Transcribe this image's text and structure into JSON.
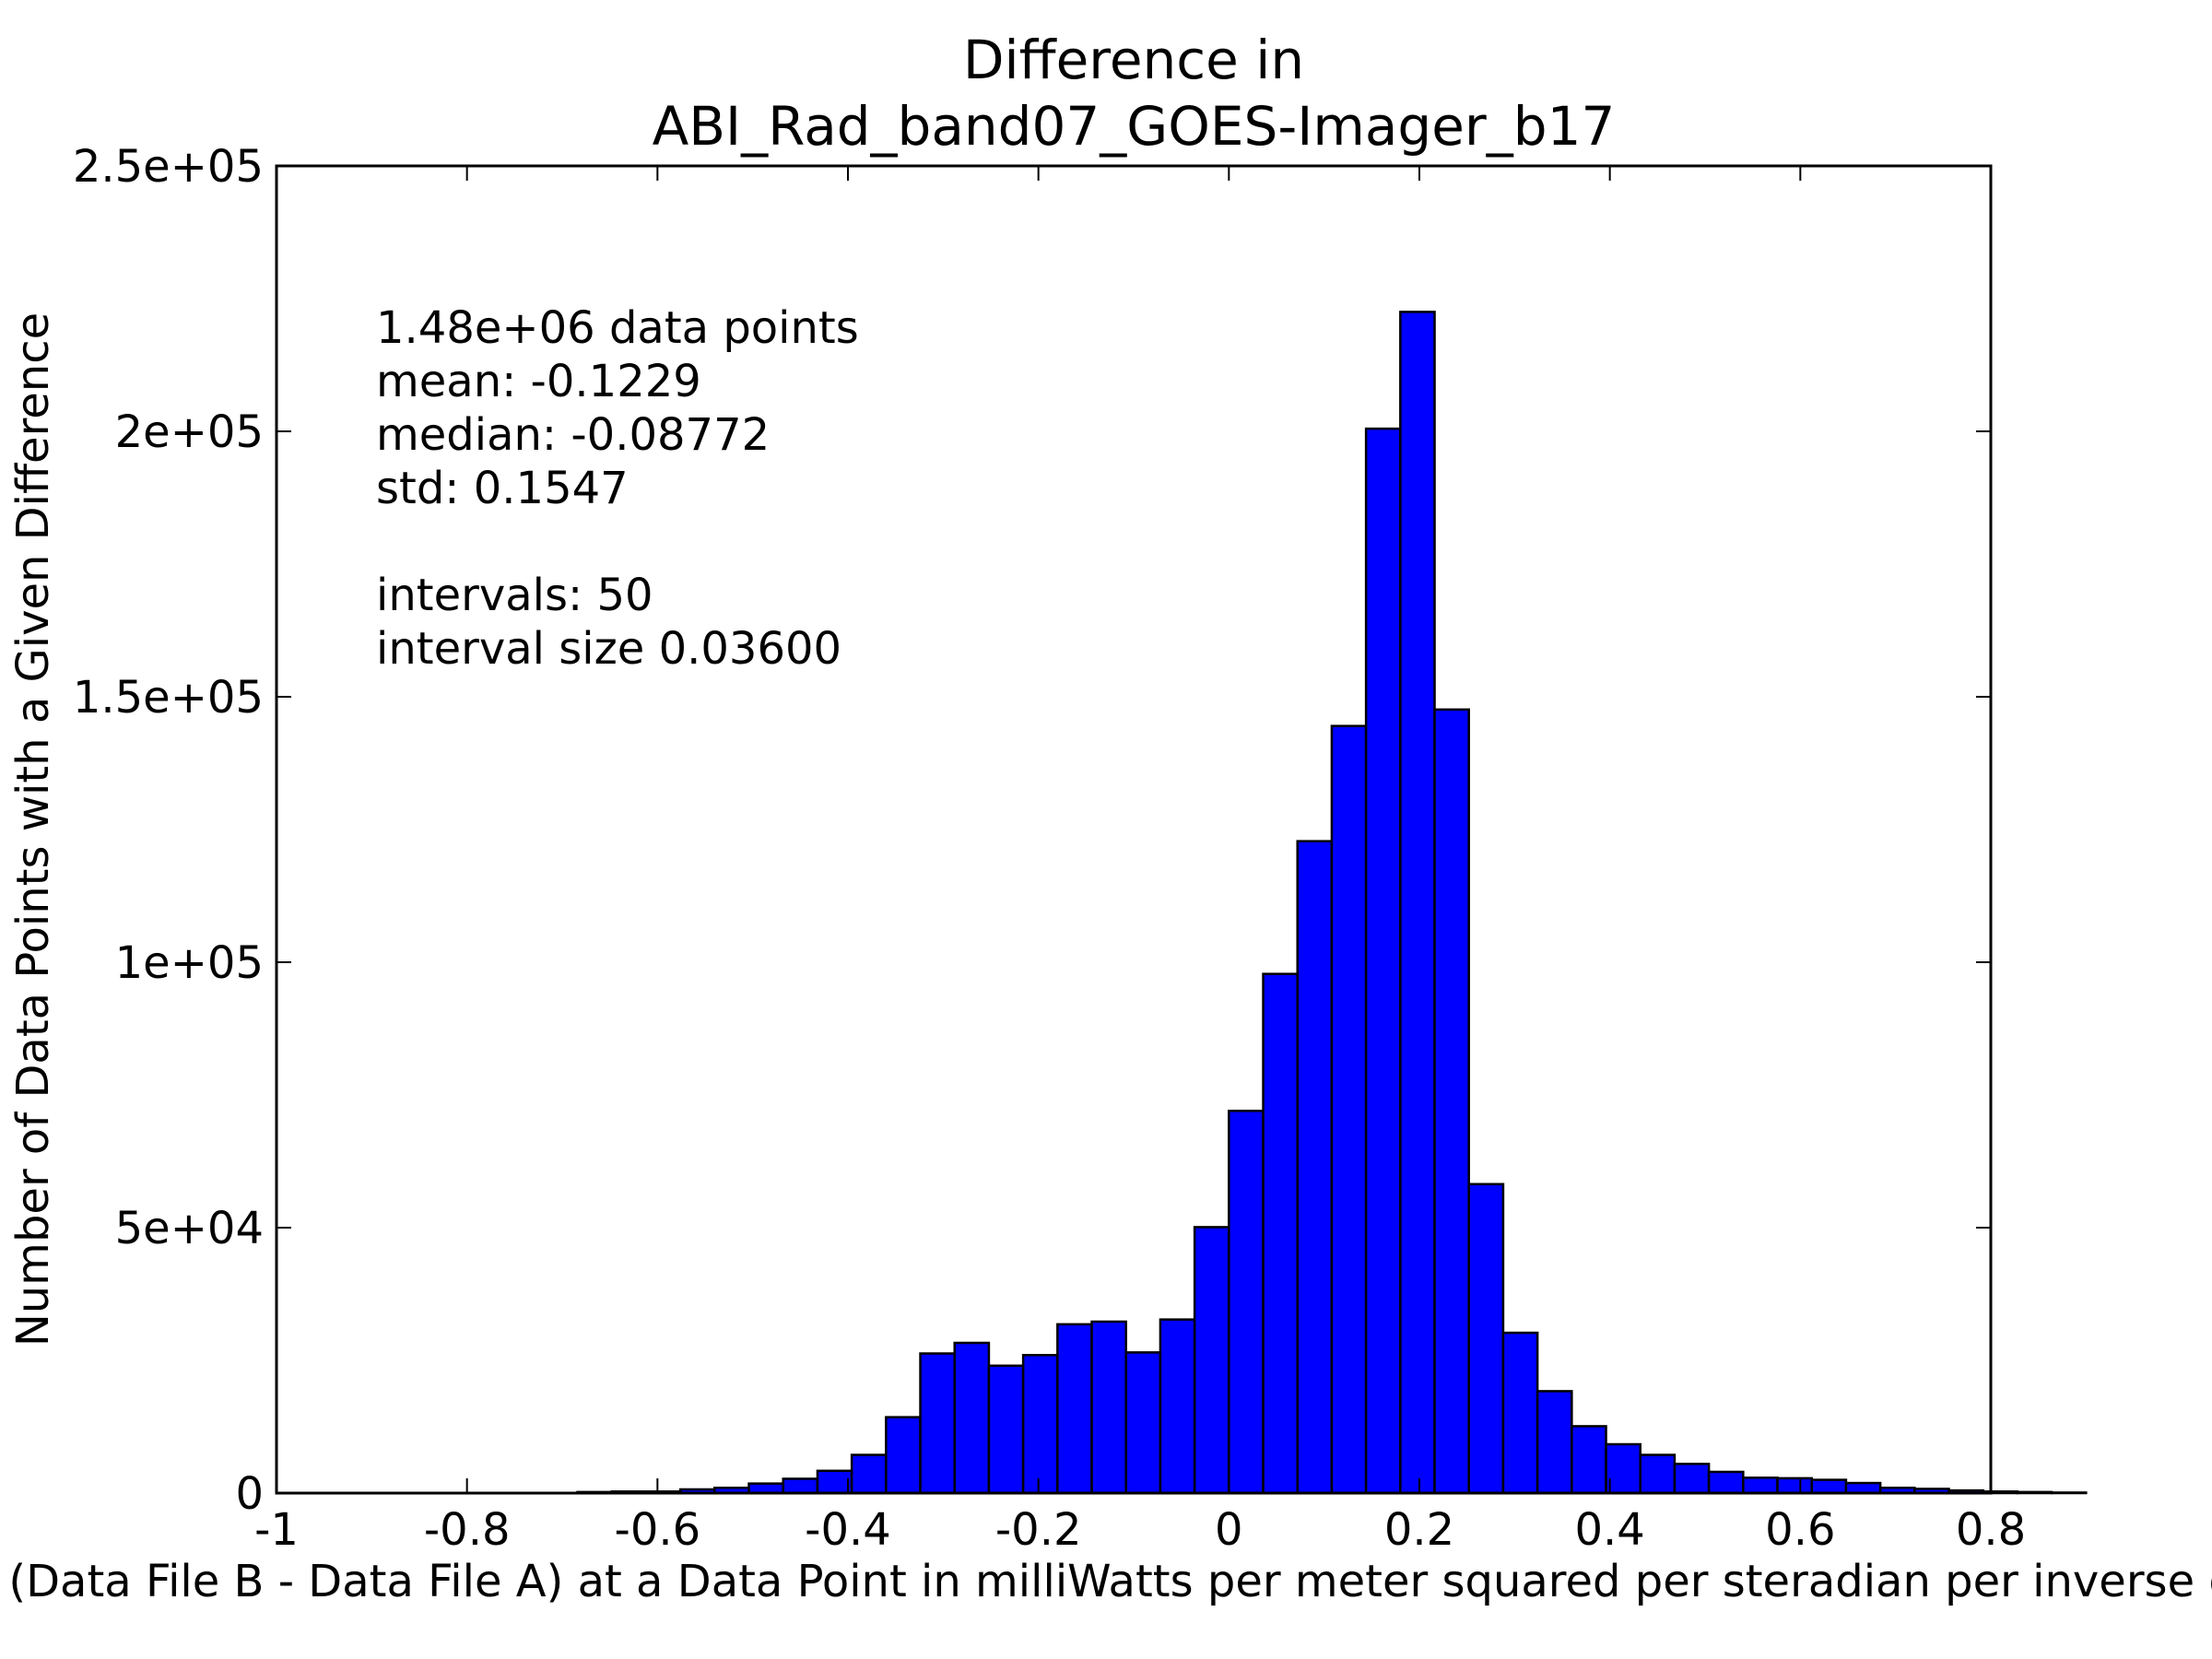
{
  "chart_data": {
    "type": "bar",
    "title_lines": [
      "Difference in",
      "ABI_Rad_band07_GOES-Imager_b17"
    ],
    "xlabel": "Value of (Data File B - Data File A) at a Data Point in milliWatts per meter squared per steradian per inverse centimeter",
    "ylabel": "Number of Data Points with a Given Difference",
    "xlim": [
      -1.0,
      0.8
    ],
    "ylim": [
      0,
      250000
    ],
    "grid": false,
    "legend": "none",
    "bar_color": "#0000ff",
    "edge_color": "#000000",
    "x_ticks": [
      {
        "value": -1.0,
        "label": "-1"
      },
      {
        "value": -0.8,
        "label": "-0.8"
      },
      {
        "value": -0.6,
        "label": "-0.6"
      },
      {
        "value": -0.4,
        "label": "-0.4"
      },
      {
        "value": -0.2,
        "label": "-0.2"
      },
      {
        "value": 0.0,
        "label": "0"
      },
      {
        "value": 0.2,
        "label": "0.2"
      },
      {
        "value": 0.4,
        "label": "0.4"
      },
      {
        "value": 0.6,
        "label": "0.6"
      },
      {
        "value": 0.8,
        "label": "0.8"
      }
    ],
    "y_ticks": [
      {
        "value": 0,
        "label": "0"
      },
      {
        "value": 50000,
        "label": "5e+04"
      },
      {
        "value": 100000,
        "label": "1e+05"
      },
      {
        "value": 150000,
        "label": "1.5e+05"
      },
      {
        "value": 200000,
        "label": "2e+05"
      },
      {
        "value": 250000,
        "label": "2.5e+05"
      }
    ],
    "bin_start": -0.9,
    "bin_width": 0.036,
    "values": [
      0,
      0,
      0,
      0,
      0,
      0,
      200,
      300,
      300,
      700,
      1000,
      1800,
      2700,
      4200,
      7200,
      14300,
      26300,
      28300,
      24000,
      26000,
      31800,
      32300,
      26500,
      32700,
      50100,
      72000,
      97800,
      122800,
      144500,
      200500,
      222500,
      147600,
      58200,
      30200,
      19200,
      12600,
      9200,
      7200,
      5500,
      4000,
      2900,
      2800,
      2500,
      1900,
      1000,
      800,
      500,
      300,
      200,
      100
    ],
    "stats_lines": [
      "1.48e+06 data points",
      "mean: -0.1229",
      "median: -0.08772",
      "std: 0.1547",
      "",
      "intervals: 50",
      "interval size 0.03600"
    ]
  }
}
